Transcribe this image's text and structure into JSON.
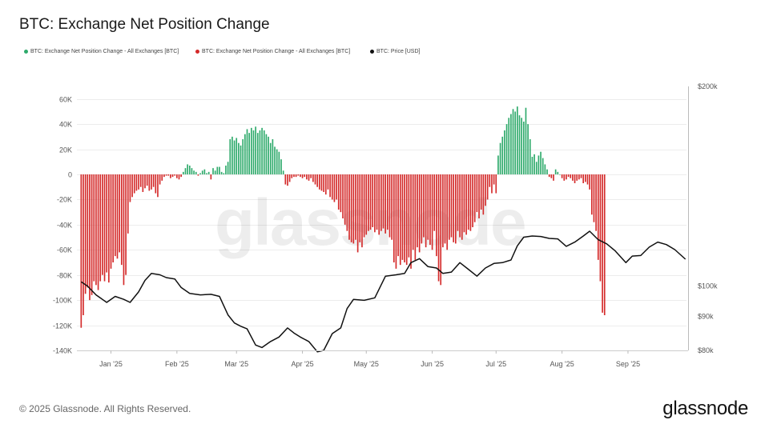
{
  "title": "BTC: Exchange Net Position Change",
  "legend": [
    {
      "label": "BTC: Exchange Net Position Change - All Exchanges [BTC]",
      "color": "#2eaa6b"
    },
    {
      "label": "BTC: Exchange Net Position Change - All Exchanges [BTC]",
      "color": "#d42a2a"
    },
    {
      "label": "BTC: Price [USD]",
      "color": "#111111"
    }
  ],
  "watermark": "glassnode",
  "footer": "© 2025 Glassnode. All Rights Reserved.",
  "brand": "glassnode",
  "chart_data": {
    "type": "bar",
    "title": "BTC: Exchange Net Position Change",
    "x_ticks": [
      "Jan '25",
      "Feb '25",
      "Mar '25",
      "Apr '25",
      "May '25",
      "Jun '25",
      "Jul '25",
      "Aug '25",
      "Sep '25"
    ],
    "y_left": {
      "ticks": [
        "60K",
        "40K",
        "20K",
        "0",
        "-20K",
        "-40K",
        "-60K",
        "-80K",
        "-100K",
        "-120K",
        "-140K"
      ],
      "range": [
        -140000,
        70000
      ]
    },
    "y_right": {
      "ticks": [
        "$200k",
        "$100k",
        "$90k",
        "$80k"
      ],
      "range": [
        80000,
        200000
      ],
      "scale": "log"
    },
    "grid": true,
    "positive_color": "#2eaa6b",
    "negative_color": "#d42a2a",
    "price_color": "#111111",
    "series": [
      {
        "name": "BTC: Exchange Net Position Change - All Exchanges [BTC]",
        "date_range": [
          "2024-12-18",
          "2025-09-28"
        ],
        "values_k_per_day": [
          -122,
          -112,
          -95,
          -90,
          -100,
          -96,
          -85,
          -88,
          -92,
          -85,
          -80,
          -85,
          -78,
          -86,
          -75,
          -70,
          -65,
          -67,
          -62,
          -72,
          -88,
          -80,
          -47,
          -22,
          -18,
          -15,
          -13,
          -12,
          -10,
          -14,
          -11,
          -9,
          -13,
          -12,
          -10,
          -15,
          -18,
          -8,
          -5,
          -2,
          -1,
          -1,
          -3,
          -2,
          -1,
          -3,
          -4,
          -2,
          2,
          5,
          8,
          7,
          5,
          3,
          2,
          -1,
          1,
          3,
          4,
          1,
          2,
          -4,
          5,
          3,
          6,
          6,
          2,
          1,
          7,
          10,
          28,
          30,
          27,
          29,
          25,
          23,
          28,
          32,
          36,
          33,
          37,
          35,
          38,
          33,
          35,
          37,
          35,
          32,
          30,
          25,
          28,
          22,
          20,
          18,
          12,
          3,
          -8,
          -9,
          -6,
          -3,
          -2,
          -2,
          -1,
          -2,
          -3,
          -2,
          -4,
          -5,
          -3,
          -6,
          -8,
          -10,
          -12,
          -13,
          -14,
          -16,
          -12,
          -18,
          -20,
          -22,
          -20,
          -28,
          -30,
          -35,
          -40,
          -45,
          -52,
          -54,
          -55,
          -52,
          -62,
          -54,
          -58,
          -50,
          -48,
          -45,
          -44,
          -42,
          -46,
          -44,
          -48,
          -45,
          -43,
          -47,
          -44,
          -50,
          -52,
          -70,
          -75,
          -65,
          -72,
          -68,
          -70,
          -72,
          -66,
          -75,
          -60,
          -68,
          -58,
          -62,
          -55,
          -50,
          -58,
          -52,
          -56,
          -60,
          -45,
          -65,
          -85,
          -88,
          -58,
          -55,
          -60,
          -52,
          -50,
          -54,
          -55,
          -45,
          -50,
          -52,
          -46,
          -48,
          -44,
          -45,
          -42,
          -38,
          -30,
          -35,
          -28,
          -32,
          -25,
          -20,
          -10,
          -15,
          -8,
          -15,
          15,
          25,
          30,
          35,
          40,
          45,
          48,
          52,
          50,
          54,
          47,
          45,
          42,
          53,
          40,
          28,
          14,
          16,
          10,
          15,
          18,
          13,
          8,
          4,
          -2,
          -3,
          -5,
          4,
          2,
          0,
          -3,
          -5,
          -4,
          -2,
          -3,
          -5,
          -7,
          -5,
          -4,
          -3,
          -7,
          -6,
          -8,
          -12,
          -32,
          -38,
          -45,
          -68,
          -85,
          -110,
          -112
        ]
      },
      {
        "name": "BTC: Price [USD]",
        "dates": [
          "2024-12-18",
          "2024-12-21",
          "2024-12-25",
          "2024-12-30",
          "2025-01-03",
          "2025-01-07",
          "2025-01-10",
          "2025-01-14",
          "2025-01-17",
          "2025-01-20",
          "2025-01-24",
          "2025-01-27",
          "2025-01-31",
          "2025-02-03",
          "2025-02-07",
          "2025-02-12",
          "2025-02-17",
          "2025-02-21",
          "2025-02-25",
          "2025-02-28",
          "2025-03-03",
          "2025-03-06",
          "2025-03-10",
          "2025-03-13",
          "2025-03-17",
          "2025-03-21",
          "2025-03-25",
          "2025-03-28",
          "2025-03-31",
          "2025-04-04",
          "2025-04-08",
          "2025-04-11",
          "2025-04-15",
          "2025-04-19",
          "2025-04-22",
          "2025-04-25",
          "2025-04-30",
          "2025-05-05",
          "2025-05-10",
          "2025-05-15",
          "2025-05-19",
          "2025-05-22",
          "2025-05-26",
          "2025-05-30",
          "2025-06-03",
          "2025-06-06",
          "2025-06-10",
          "2025-06-14",
          "2025-06-18",
          "2025-06-22",
          "2025-06-26",
          "2025-06-30",
          "2025-07-04",
          "2025-07-08",
          "2025-07-11",
          "2025-07-14",
          "2025-07-18",
          "2025-07-22",
          "2025-07-26",
          "2025-07-30",
          "2025-08-03",
          "2025-08-07",
          "2025-08-11",
          "2025-08-14",
          "2025-08-18",
          "2025-08-22",
          "2025-08-26",
          "2025-08-31",
          "2025-09-03",
          "2025-09-07",
          "2025-09-11",
          "2025-09-15",
          "2025-09-19",
          "2025-09-23",
          "2025-09-28"
        ],
        "price_usd": [
          101500,
          100000,
          97000,
          94500,
          96500,
          95500,
          94500,
          98000,
          102000,
          104500,
          104000,
          103000,
          102500,
          99500,
          97500,
          97000,
          97200,
          96500,
          90500,
          88000,
          87000,
          86200,
          81500,
          80800,
          82500,
          83800,
          86500,
          85000,
          83800,
          82500,
          79600,
          80000,
          84800,
          86500,
          92500,
          95500,
          95200,
          96000,
          103500,
          104000,
          104500,
          108500,
          110000,
          107000,
          106500,
          104500,
          105000,
          108500,
          106000,
          103500,
          106500,
          108200,
          108500,
          109500,
          115000,
          118500,
          119000,
          118800,
          118000,
          117800,
          114800,
          116500,
          119000,
          121000,
          117500,
          115800,
          113000,
          108500,
          111000,
          111200,
          114500,
          116500,
          115500,
          113500,
          109800
        ]
      }
    ]
  }
}
